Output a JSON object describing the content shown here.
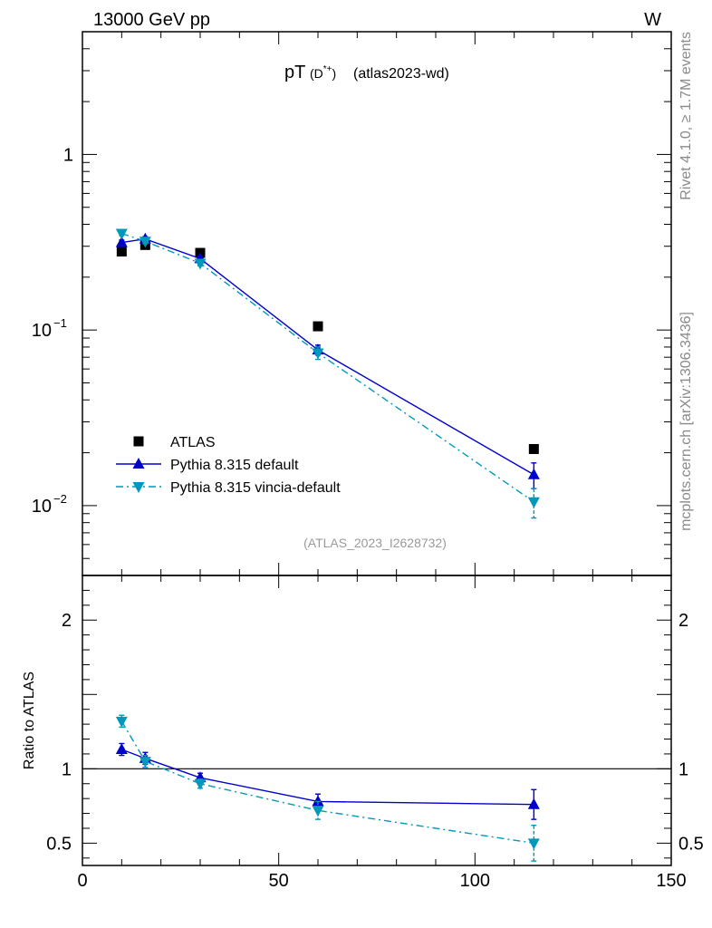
{
  "header": {
    "energy_label": "13000 GeV pp",
    "process_label": "W"
  },
  "title": {
    "main": "pT",
    "particle": "(D*+)",
    "particle_base": "(D",
    "particle_sup": "*+",
    "particle_close": ")",
    "tag": "(atlas2023-wd)"
  },
  "side_labels": {
    "rivet": "Rivet 4.1.0, ≥ 1.7M events",
    "mcplots": "mcplots.cern.ch [arXiv:1306.3436]"
  },
  "analysis_tag": "(ATLAS_2023_I2628732)",
  "chart_data": [
    {
      "type": "scatter",
      "panel": "main",
      "yscale": "log",
      "xlim": [
        0,
        150
      ],
      "ylim": [
        0.004,
        5
      ],
      "yticks": [
        {
          "value": 1,
          "label": "1"
        },
        {
          "value": 0.1,
          "label": "10",
          "exp": "−1"
        },
        {
          "value": 0.01,
          "label": "10",
          "exp": "−2"
        }
      ],
      "legend_position": "bottom-left",
      "series": [
        {
          "name": "ATLAS",
          "color": "#000000",
          "marker": "square",
          "line": "none",
          "x": [
            10,
            16,
            30,
            60,
            115
          ],
          "y": [
            0.28,
            0.305,
            0.275,
            0.105,
            0.021
          ],
          "err": [
            0,
            0,
            0,
            0,
            0
          ]
        },
        {
          "name": "Pythia 8.315 default",
          "color": "#0000cc",
          "marker": "triangle-up",
          "line": "solid",
          "x": [
            10,
            16,
            30,
            60,
            115
          ],
          "y": [
            0.315,
            0.33,
            0.255,
            0.077,
            0.015
          ],
          "err": [
            0.01,
            0.01,
            0.008,
            0.005,
            0.0025
          ]
        },
        {
          "name": "Pythia 8.315 vincia-default",
          "color": "#0099bb",
          "marker": "triangle-down",
          "line": "dashdot",
          "x": [
            10,
            16,
            30,
            60,
            115
          ],
          "y": [
            0.355,
            0.32,
            0.24,
            0.074,
            0.0105
          ],
          "err": [
            0.01,
            0.01,
            0.008,
            0.006,
            0.002
          ]
        }
      ]
    },
    {
      "type": "scatter",
      "panel": "ratio",
      "ylabel": "Ratio to ATLAS",
      "xlim": [
        0,
        150
      ],
      "ylim": [
        0.35,
        2.3
      ],
      "yticks": [
        {
          "value": 0.5,
          "label": "0.5"
        },
        {
          "value": 1,
          "label": "1"
        },
        {
          "value": 2,
          "label": "2"
        }
      ],
      "xticks": [
        {
          "value": 0,
          "label": "0"
        },
        {
          "value": 50,
          "label": "50"
        },
        {
          "value": 100,
          "label": "100"
        },
        {
          "value": 150,
          "label": "150"
        }
      ],
      "series": [
        {
          "name": "Pythia 8.315 default",
          "color": "#0000cc",
          "marker": "triangle-up",
          "line": "solid",
          "x": [
            10,
            16,
            30,
            60,
            115
          ],
          "y": [
            1.13,
            1.07,
            0.94,
            0.78,
            0.76
          ],
          "err": [
            0.04,
            0.04,
            0.03,
            0.05,
            0.1
          ]
        },
        {
          "name": "Pythia 8.315 vincia-default",
          "color": "#0099bb",
          "marker": "triangle-down",
          "line": "dashdot",
          "x": [
            10,
            16,
            30,
            60,
            115
          ],
          "y": [
            1.32,
            1.05,
            0.9,
            0.72,
            0.5
          ],
          "err": [
            0.04,
            0.04,
            0.03,
            0.06,
            0.12
          ]
        }
      ]
    }
  ]
}
